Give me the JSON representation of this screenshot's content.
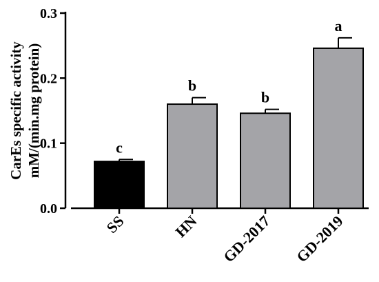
{
  "chart_data": {
    "type": "bar",
    "title": "",
    "ylabel": [
      "CarEs specific activity",
      "mM/(min.mg protein)"
    ],
    "xlabel": "",
    "ylim": [
      0,
      0.3
    ],
    "yticks": [
      0.0,
      0.1,
      0.2,
      0.3
    ],
    "ytick_labels": [
      "0.0",
      "0.1",
      "0.2",
      "0.3"
    ],
    "categories": [
      "SS",
      "HN",
      "GD-2017",
      "GD-2019"
    ],
    "values": [
      0.072,
      0.16,
      0.146,
      0.246
    ],
    "errors": [
      0.003,
      0.01,
      0.006,
      0.016
    ],
    "significance": [
      "c",
      "b",
      "b",
      "a"
    ],
    "bar_colors": [
      "#000000",
      "#a4a4a8",
      "#a4a4a8",
      "#a4a4a8"
    ],
    "grid": false,
    "legend": "none"
  }
}
